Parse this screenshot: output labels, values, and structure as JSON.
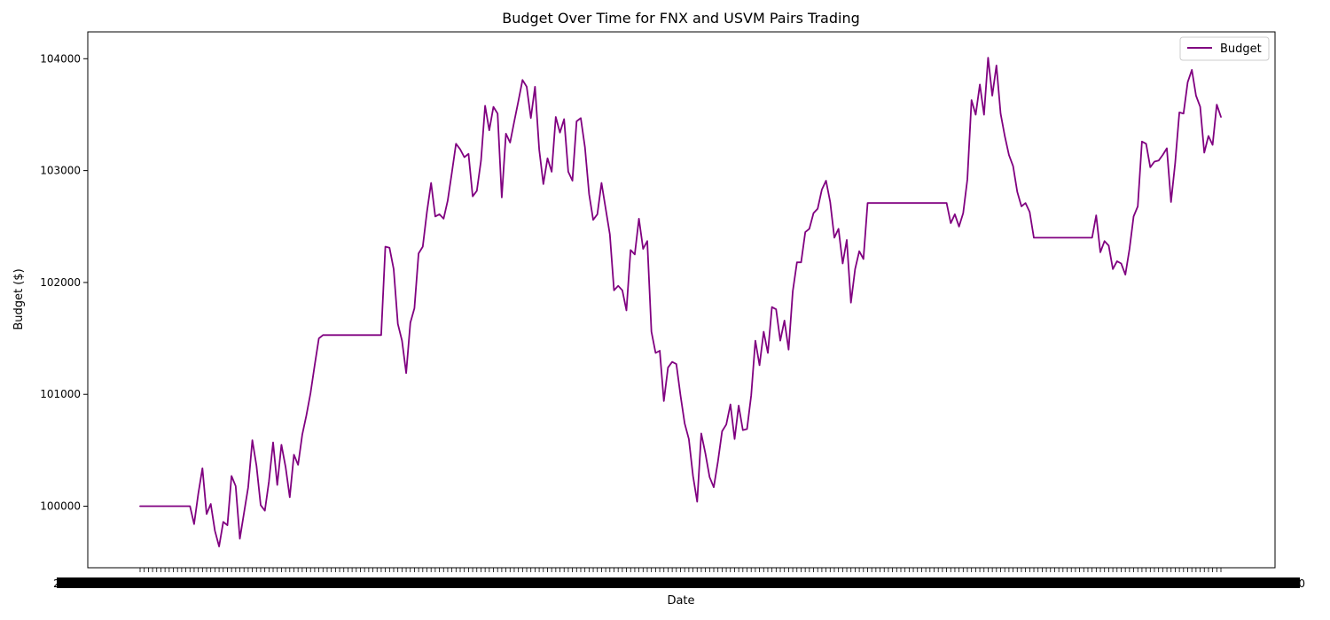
{
  "chart_data": {
    "type": "line",
    "title": "Budget Over Time for FNX and USVM Pairs Trading",
    "xlabel": "Date",
    "ylabel": "Budget ($)",
    "ylim": [
      99450,
      104240
    ],
    "y_ticks": [
      100000,
      101000,
      102000,
      103000,
      104000
    ],
    "x_tick_labels_left": "2022",
    "x_tick_labels_right": "1000",
    "grid": false,
    "legend_position": "top-right",
    "colors": {
      "Budget": "#800080"
    },
    "series": [
      {
        "name": "Budget",
        "values": [
          100000,
          100000,
          100000,
          100000,
          100000,
          100000,
          100000,
          100000,
          100000,
          100000,
          100000,
          100000,
          100000,
          99840,
          100110,
          100340,
          99930,
          100020,
          99780,
          99640,
          99860,
          99830,
          100270,
          100180,
          99710,
          99940,
          100170,
          100590,
          100360,
          100010,
          99960,
          100220,
          100570,
          100190,
          100550,
          100350,
          100080,
          100460,
          100370,
          100640,
          100810,
          101010,
          101260,
          101500,
          101530,
          101530,
          101530,
          101530,
          101530,
          101530,
          101530,
          101530,
          101530,
          101530,
          101530,
          101530,
          101530,
          101530,
          101530,
          102320,
          102310,
          102120,
          101630,
          101480,
          101190,
          101640,
          101770,
          102260,
          102320,
          102630,
          102890,
          102590,
          102610,
          102570,
          102730,
          102980,
          103240,
          103190,
          103120,
          103150,
          102770,
          102820,
          103090,
          103580,
          103360,
          103570,
          103510,
          102760,
          103330,
          103250,
          103440,
          103620,
          103810,
          103750,
          103470,
          103750,
          103190,
          102880,
          103110,
          102990,
          103480,
          103340,
          103460,
          102990,
          102910,
          103440,
          103470,
          103210,
          102790,
          102560,
          102610,
          102890,
          102660,
          102430,
          101930,
          101970,
          101930,
          101750,
          102290,
          102250,
          102570,
          102300,
          102370,
          101560,
          101370,
          101390,
          100940,
          101240,
          101290,
          101270,
          100990,
          100740,
          100600,
          100270,
          100040,
          100650,
          100470,
          100260,
          100170,
          100400,
          100670,
          100730,
          100910,
          100600,
          100900,
          100680,
          100690,
          100990,
          101480,
          101260,
          101560,
          101370,
          101780,
          101760,
          101480,
          101660,
          101400,
          101920,
          102180,
          102180,
          102450,
          102480,
          102620,
          102660,
          102830,
          102910,
          102720,
          102400,
          102480,
          102170,
          102380,
          101820,
          102120,
          102280,
          102210,
          102710,
          102710,
          102710,
          102710,
          102710,
          102710,
          102710,
          102710,
          102710,
          102710,
          102710,
          102710,
          102710,
          102710,
          102710,
          102710,
          102710,
          102710,
          102710,
          102710,
          102530,
          102610,
          102500,
          102620,
          102920,
          103630,
          103500,
          103770,
          103500,
          104010,
          103670,
          103940,
          103510,
          103310,
          103140,
          103040,
          102810,
          102680,
          102710,
          102630,
          102400,
          102400,
          102400,
          102400,
          102400,
          102400,
          102400,
          102400,
          102400,
          102400,
          102400,
          102400,
          102400,
          102400,
          102400,
          102600,
          102270,
          102370,
          102330,
          102120,
          102190,
          102170,
          102070,
          102300,
          102590,
          102680,
          103260,
          103240,
          103030,
          103080,
          103090,
          103140,
          103200,
          102720,
          103070,
          103520,
          103510,
          103790,
          103900,
          103670,
          103570,
          103160,
          103310,
          103230,
          103590,
          103480
        ]
      }
    ]
  }
}
